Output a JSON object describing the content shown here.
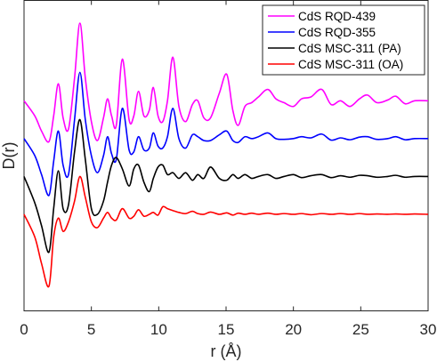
{
  "chart_data": {
    "type": "line",
    "xlabel": "r (Å)",
    "ylabel": "D(r)",
    "xlim": [
      0,
      30
    ],
    "xticks": [
      "0",
      "5",
      "10",
      "15",
      "20",
      "25",
      "30"
    ],
    "yticks_labeled": false,
    "grid": false,
    "legend_position": "top-right",
    "series": [
      {
        "name": "CdS RQD-439",
        "color": "#ff00ff",
        "baseline": 3.0,
        "points": [
          [
            0,
            3.0
          ],
          [
            0.8,
            2.6
          ],
          [
            1.3,
            2.2
          ],
          [
            1.85,
            1.92
          ],
          [
            2.2,
            2.6
          ],
          [
            2.55,
            3.45
          ],
          [
            2.9,
            2.55
          ],
          [
            3.3,
            2.25
          ],
          [
            3.75,
            3.6
          ],
          [
            4.15,
            5.05
          ],
          [
            4.55,
            3.6
          ],
          [
            5.0,
            2.45
          ],
          [
            5.45,
            1.95
          ],
          [
            5.9,
            2.55
          ],
          [
            6.2,
            3.05
          ],
          [
            6.5,
            2.6
          ],
          [
            6.85,
            2.35
          ],
          [
            7.3,
            4.1
          ],
          [
            7.8,
            2.5
          ],
          [
            8.15,
            2.6
          ],
          [
            8.5,
            3.25
          ],
          [
            8.9,
            2.6
          ],
          [
            9.3,
            2.75
          ],
          [
            9.6,
            3.35
          ],
          [
            9.95,
            2.6
          ],
          [
            10.3,
            2.45
          ],
          [
            10.65,
            3.0
          ],
          [
            11.05,
            4.15
          ],
          [
            11.5,
            2.85
          ],
          [
            12.0,
            2.45
          ],
          [
            12.5,
            2.9
          ],
          [
            12.9,
            3.0
          ],
          [
            13.35,
            2.55
          ],
          [
            13.85,
            2.55
          ],
          [
            14.5,
            3.2
          ],
          [
            15.05,
            3.7
          ],
          [
            15.5,
            2.75
          ],
          [
            15.9,
            2.35
          ],
          [
            16.4,
            2.85
          ],
          [
            16.9,
            2.95
          ],
          [
            17.4,
            3.1
          ],
          [
            18.1,
            3.3
          ],
          [
            18.7,
            3.05
          ],
          [
            19.3,
            2.95
          ],
          [
            20.0,
            2.85
          ],
          [
            20.6,
            3.05
          ],
          [
            21.3,
            3.1
          ],
          [
            22.1,
            3.3
          ],
          [
            22.8,
            2.9
          ],
          [
            23.5,
            3.0
          ],
          [
            24.2,
            2.85
          ],
          [
            24.9,
            3.05
          ],
          [
            25.5,
            3.15
          ],
          [
            26.2,
            2.95
          ],
          [
            27.0,
            3.02
          ],
          [
            27.6,
            3.12
          ],
          [
            28.3,
            2.92
          ],
          [
            29.0,
            3.0
          ],
          [
            30.0,
            3.0
          ]
        ]
      },
      {
        "name": "CdS RQD-355",
        "color": "#0000ff",
        "baseline": 2.0,
        "points": [
          [
            0,
            2.0
          ],
          [
            0.8,
            1.55
          ],
          [
            1.3,
            1.05
          ],
          [
            1.85,
            0.5
          ],
          [
            2.2,
            1.4
          ],
          [
            2.55,
            2.2
          ],
          [
            2.9,
            1.3
          ],
          [
            3.3,
            1.05
          ],
          [
            3.75,
            2.5
          ],
          [
            4.15,
            3.75
          ],
          [
            4.55,
            2.5
          ],
          [
            5.0,
            1.55
          ],
          [
            5.45,
            1.1
          ],
          [
            5.9,
            1.55
          ],
          [
            6.2,
            2.05
          ],
          [
            6.5,
            1.6
          ],
          [
            6.85,
            1.45
          ],
          [
            7.3,
            2.8
          ],
          [
            7.8,
            1.7
          ],
          [
            8.15,
            1.65
          ],
          [
            8.5,
            2.05
          ],
          [
            8.9,
            1.7
          ],
          [
            9.3,
            1.75
          ],
          [
            9.6,
            2.15
          ],
          [
            9.95,
            1.8
          ],
          [
            10.3,
            1.75
          ],
          [
            10.65,
            2.05
          ],
          [
            11.05,
            2.8
          ],
          [
            11.5,
            2.0
          ],
          [
            12.0,
            1.75
          ],
          [
            12.5,
            2.1
          ],
          [
            12.9,
            2.05
          ],
          [
            13.35,
            1.95
          ],
          [
            13.85,
            1.95
          ],
          [
            14.5,
            2.1
          ],
          [
            15.05,
            2.2
          ],
          [
            15.5,
            1.95
          ],
          [
            15.9,
            1.9
          ],
          [
            16.4,
            2.05
          ],
          [
            16.9,
            2.0
          ],
          [
            17.4,
            2.05
          ],
          [
            18.1,
            2.15
          ],
          [
            18.7,
            2.0
          ],
          [
            19.3,
            1.98
          ],
          [
            20.0,
            2.0
          ],
          [
            20.6,
            2.05
          ],
          [
            21.3,
            2.02
          ],
          [
            22.1,
            2.12
          ],
          [
            22.8,
            1.96
          ],
          [
            23.5,
            2.02
          ],
          [
            24.2,
            1.97
          ],
          [
            24.9,
            2.04
          ],
          [
            25.5,
            2.05
          ],
          [
            26.2,
            1.98
          ],
          [
            27.0,
            2.0
          ],
          [
            27.6,
            2.05
          ],
          [
            28.3,
            1.97
          ],
          [
            29.0,
            2.0
          ],
          [
            30.0,
            2.0
          ]
        ]
      },
      {
        "name": "CdS MSC-311 (PA)",
        "color": "#000000",
        "baseline": 1.0,
        "points": [
          [
            0,
            1.0
          ],
          [
            0.8,
            0.3
          ],
          [
            1.3,
            -0.3
          ],
          [
            1.85,
            -1.0
          ],
          [
            2.2,
            0.15
          ],
          [
            2.55,
            1.15
          ],
          [
            2.9,
            0.15
          ],
          [
            3.3,
            0.25
          ],
          [
            3.75,
            1.65
          ],
          [
            4.15,
            2.5
          ],
          [
            4.55,
            1.45
          ],
          [
            5.0,
            0.15
          ],
          [
            5.45,
            0.0
          ],
          [
            5.9,
            0.35
          ],
          [
            6.2,
            0.85
          ],
          [
            6.5,
            1.3
          ],
          [
            6.85,
            1.5
          ],
          [
            7.3,
            1.2
          ],
          [
            7.8,
            0.75
          ],
          [
            8.15,
            1.2
          ],
          [
            8.5,
            1.3
          ],
          [
            8.9,
            0.85
          ],
          [
            9.3,
            0.6
          ],
          [
            9.6,
            0.95
          ],
          [
            9.95,
            1.25
          ],
          [
            10.3,
            1.3
          ],
          [
            10.65,
            1.05
          ],
          [
            11.05,
            1.1
          ],
          [
            11.5,
            0.95
          ],
          [
            12.0,
            1.1
          ],
          [
            12.5,
            0.9
          ],
          [
            12.9,
            1.05
          ],
          [
            13.35,
            0.95
          ],
          [
            13.85,
            1.25
          ],
          [
            14.5,
            0.95
          ],
          [
            15.05,
            0.9
          ],
          [
            15.5,
            1.05
          ],
          [
            15.9,
            0.95
          ],
          [
            16.4,
            1.05
          ],
          [
            16.9,
            0.95
          ],
          [
            17.4,
            1.0
          ],
          [
            18.1,
            1.05
          ],
          [
            18.7,
            0.95
          ],
          [
            19.3,
            1.0
          ],
          [
            20.0,
            1.05
          ],
          [
            20.6,
            0.97
          ],
          [
            21.3,
            1.02
          ],
          [
            22.1,
            1.05
          ],
          [
            22.8,
            0.97
          ],
          [
            23.5,
            1.02
          ],
          [
            24.2,
            0.98
          ],
          [
            24.9,
            1.03
          ],
          [
            25.5,
            1.02
          ],
          [
            26.2,
            0.98
          ],
          [
            27.0,
            1.0
          ],
          [
            27.6,
            1.03
          ],
          [
            28.3,
            0.98
          ],
          [
            29.0,
            1.0
          ],
          [
            30.0,
            1.0
          ]
        ]
      },
      {
        "name": "CdS MSC-311 (OA)",
        "color": "#ff0000",
        "baseline": 0.0,
        "points": [
          [
            0,
            0.0
          ],
          [
            0.8,
            -0.6
          ],
          [
            1.3,
            -1.3
          ],
          [
            1.85,
            -1.9
          ],
          [
            2.2,
            -0.6
          ],
          [
            2.55,
            -0.1
          ],
          [
            2.9,
            -0.45
          ],
          [
            3.3,
            -0.2
          ],
          [
            3.75,
            0.35
          ],
          [
            4.15,
            1.0
          ],
          [
            4.55,
            0.45
          ],
          [
            5.0,
            -0.2
          ],
          [
            5.45,
            -0.35
          ],
          [
            5.9,
            -0.1
          ],
          [
            6.2,
            0.05
          ],
          [
            6.5,
            -0.1
          ],
          [
            6.85,
            -0.15
          ],
          [
            7.3,
            0.15
          ],
          [
            7.8,
            -0.1
          ],
          [
            8.15,
            -0.05
          ],
          [
            8.5,
            0.12
          ],
          [
            8.9,
            -0.05
          ],
          [
            9.3,
            0.0
          ],
          [
            9.6,
            0.05
          ],
          [
            9.95,
            -0.02
          ],
          [
            10.3,
            0.2
          ],
          [
            10.65,
            0.15
          ],
          [
            11.05,
            0.1
          ],
          [
            11.5,
            0.05
          ],
          [
            12.0,
            0.02
          ],
          [
            12.5,
            0.08
          ],
          [
            12.9,
            0.02
          ],
          [
            13.35,
            0.0
          ],
          [
            13.85,
            0.06
          ],
          [
            14.5,
            0.0
          ],
          [
            15.05,
            0.04
          ],
          [
            15.5,
            -0.02
          ],
          [
            15.9,
            0.03
          ],
          [
            16.4,
            0.0
          ],
          [
            16.9,
            0.03
          ],
          [
            17.4,
            0.0
          ],
          [
            18.1,
            0.03
          ],
          [
            18.7,
            0.0
          ],
          [
            19.3,
            0.02
          ],
          [
            20.0,
            0.0
          ],
          [
            20.6,
            0.02
          ],
          [
            21.3,
            -0.01
          ],
          [
            22.1,
            0.02
          ],
          [
            22.8,
            0.0
          ],
          [
            23.5,
            0.02
          ],
          [
            24.2,
            0.0
          ],
          [
            24.9,
            0.02
          ],
          [
            25.5,
            0.0
          ],
          [
            26.2,
            0.01
          ],
          [
            27.0,
            0.0
          ],
          [
            27.6,
            0.01
          ],
          [
            28.3,
            0.0
          ],
          [
            29.0,
            0.01
          ],
          [
            30.0,
            0.0
          ]
        ]
      }
    ]
  }
}
